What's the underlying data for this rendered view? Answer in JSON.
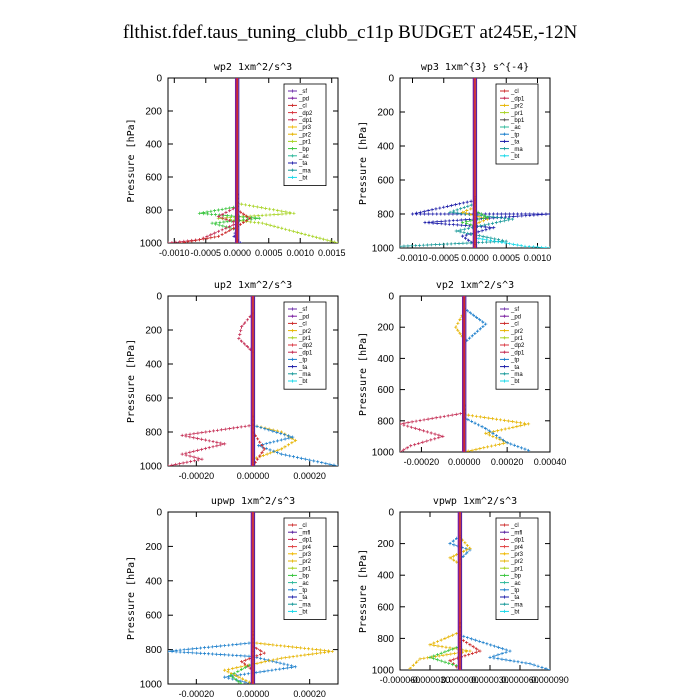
{
  "title": "flthist.fdef.taus_tuning_clubb_c11p  BUDGET at245E,-12N",
  "colors": {
    "legend": {
      "_sf": "#6a2aa8",
      "_pd": "#7a1fa0",
      "_cl": "#cc2a2a",
      "_dp2": "#d8323c",
      "_dp1": "#c42b52",
      "_pr3": "#f0b800",
      "_pr2": "#e6b400",
      "_pr1": "#a7d323",
      "_bp": "#37c43c",
      "_ac": "#2cb89a",
      "_tp": "#1c7fcc",
      "_ta": "#1a1aa8",
      "_ma": "#1a9a9a",
      "_bt": "#16d8e8",
      "_mfl": "#5a22a0",
      "_pr4": "#e04040"
    }
  },
  "chart_data": [
    {
      "type": "line",
      "title": "wp2   1xm^2/s^3",
      "ylabel": "Pressure [hPa]",
      "ylim": [
        1000,
        0
      ],
      "xlim": [
        -0.0011,
        0.0016
      ],
      "xticks": [
        -0.001,
        -0.0005,
        0.0,
        0.0005,
        0.001,
        0.0015
      ],
      "xtick_labels": [
        "-0.0010",
        "-0.0005",
        "0.0000",
        "0.0005",
        "0.0010",
        "0.0015"
      ],
      "yticks": [
        0,
        200,
        400,
        600,
        800,
        1000
      ],
      "legend": [
        "_sf",
        "_pd",
        "_cl",
        "_dp2",
        "_dp1",
        "_pr3",
        "_pr2",
        "_pr1",
        "_bp",
        "_ac",
        "_ta",
        "_ma",
        "_bt"
      ],
      "legend_placement": "top-right",
      "series": [
        {
          "name": "_pr1",
          "points": [
            [
              0.0,
              760
            ],
            [
              0.0009,
              820
            ],
            [
              -0.0003,
              850
            ],
            [
              0.0004,
              880
            ],
            [
              0.0012,
              960
            ],
            [
              0.0016,
              1000
            ]
          ]
        },
        {
          "name": "_bp",
          "points": [
            [
              0.0,
              780
            ],
            [
              -0.0006,
              820
            ],
            [
              0.00035,
              850
            ],
            [
              -0.0004,
              880
            ],
            [
              0.0,
              920
            ]
          ]
        },
        {
          "name": "_dp1",
          "points": [
            [
              0.0,
              780
            ],
            [
              -0.0003,
              840
            ],
            [
              0.0,
              880
            ],
            [
              -0.0006,
              980
            ],
            [
              -0.0011,
              1000
            ]
          ]
        },
        {
          "name": "_cl",
          "points": [
            [
              0.0,
              800
            ],
            [
              0.0002,
              850
            ],
            [
              0.0,
              900
            ],
            [
              -0.0003,
              960
            ],
            [
              -0.0009,
              1000
            ]
          ]
        },
        {
          "name": "_ta",
          "points": [
            [
              0.0,
              900
            ],
            [
              -5e-05,
              960
            ],
            [
              5e-05,
              1000
            ]
          ]
        }
      ]
    },
    {
      "type": "line",
      "title": "wp3   1xm^{3} s^{-4}",
      "ylabel": "Pressure [hPa]",
      "ylim": [
        1000,
        0
      ],
      "xlim": [
        -0.0012,
        0.0012
      ],
      "xticks": [
        -0.001,
        -0.0005,
        0.0,
        0.0005,
        0.001
      ],
      "xtick_labels": [
        "-0.0010",
        "-0.0005",
        "0.0000",
        "0.0005",
        "0.0010"
      ],
      "yticks": [
        0,
        200,
        400,
        600,
        800,
        1000
      ],
      "legend": [
        "_cl",
        "_dp1",
        "_pr2",
        "_pr1",
        "_bp1",
        "_ac",
        "_tp",
        "_ta",
        "_ma",
        "_bt"
      ],
      "legend_placement": "top-right",
      "series": [
        {
          "name": "_ta",
          "points": [
            [
              0.0,
              720
            ],
            [
              -0.001,
              800
            ],
            [
              0.0012,
              800
            ],
            [
              -0.0008,
              850
            ],
            [
              0.0003,
              880
            ],
            [
              -0.0002,
              930
            ],
            [
              0.0,
              980
            ]
          ]
        },
        {
          "name": "_ma",
          "points": [
            [
              0.0,
              740
            ],
            [
              -0.0004,
              790
            ],
            [
              0.0006,
              830
            ],
            [
              -0.0003,
              900
            ],
            [
              0.0005,
              960
            ],
            [
              -0.0012,
              990
            ]
          ]
        },
        {
          "name": "_pr2",
          "points": [
            [
              0.0,
              760
            ],
            [
              -0.0002,
              790
            ],
            [
              0.0002,
              830
            ],
            [
              0.0,
              860
            ]
          ]
        },
        {
          "name": "_bp",
          "points": [
            [
              0.0,
              780
            ],
            [
              0.0002,
              820
            ],
            [
              -0.0002,
              850
            ],
            [
              0.0,
              870
            ]
          ]
        },
        {
          "name": "_bt",
          "points": [
            [
              0.0,
              940
            ],
            [
              0.0008,
              990
            ],
            [
              0.0012,
              1000
            ]
          ]
        }
      ]
    },
    {
      "type": "line",
      "title": "up2   1xm^2/s^3",
      "ylabel": "Pressure [hPa]",
      "ylim": [
        1000,
        0
      ],
      "xlim": [
        -0.0003,
        0.0003
      ],
      "xticks": [
        -0.0002,
        0.0,
        0.0002
      ],
      "xtick_labels": [
        "-0.00020",
        "0.00000",
        "0.00020"
      ],
      "yticks": [
        0,
        200,
        400,
        600,
        800,
        1000
      ],
      "legend": [
        "_sf",
        "_pd",
        "_cl",
        "_pr2",
        "_pr1",
        "_dp2",
        "_dp1",
        "_tp",
        "_ta",
        "_ma",
        "_bt"
      ],
      "legend_placement": "top-right",
      "series": [
        {
          "name": "_dp1",
          "points": [
            [
              0.0,
              100
            ],
            [
              -4e-05,
              180
            ],
            [
              -5e-05,
              250
            ],
            [
              0.0,
              330
            ]
          ]
        },
        {
          "name": "_dp1",
          "points": [
            [
              0.0,
              760
            ],
            [
              -0.00025,
              820
            ],
            [
              -0.0001,
              870
            ],
            [
              -0.00025,
              930
            ],
            [
              -0.00018,
              960
            ],
            [
              -0.0003,
              1000
            ]
          ]
        },
        {
          "name": "_pr2",
          "points": [
            [
              0.0,
              760
            ],
            [
              0.0001,
              800
            ],
            [
              0.00015,
              850
            ],
            [
              0.0001,
              900
            ],
            [
              0.0,
              960
            ]
          ]
        },
        {
          "name": "_tp",
          "points": [
            [
              0.0,
              760
            ],
            [
              0.00014,
              830
            ],
            [
              2e-05,
              880
            ],
            [
              0.0001,
              930
            ],
            [
              0.0003,
              1000
            ]
          ]
        },
        {
          "name": "_cl",
          "points": [
            [
              0.0,
              800
            ],
            [
              4e-05,
              900
            ],
            [
              0.0,
              1000
            ]
          ]
        }
      ]
    },
    {
      "type": "line",
      "title": "vp2   1xm^2/s^3",
      "ylabel": "Pressure [hPa]",
      "ylim": [
        1000,
        0
      ],
      "xlim": [
        -0.0003,
        0.0004
      ],
      "xticks": [
        -0.0002,
        0.0,
        0.0002,
        0.0004
      ],
      "xtick_labels": [
        "-0.00020",
        "0.00000",
        "0.00020",
        "0.00040"
      ],
      "yticks": [
        0,
        200,
        400,
        600,
        800,
        1000
      ],
      "legend": [
        "_sf",
        "_pd",
        "_cl",
        "_pr2",
        "_pr1",
        "_dp2",
        "_dp1",
        "_tp",
        "_ta",
        "_ma",
        "_bt"
      ],
      "legend_placement": "top-right",
      "series": [
        {
          "name": "_tp",
          "points": [
            [
              0.0,
              80
            ],
            [
              0.0001,
              180
            ],
            [
              5e-05,
              240
            ],
            [
              0.0,
              300
            ]
          ]
        },
        {
          "name": "_pr2",
          "points": [
            [
              0.0,
              100
            ],
            [
              -4e-05,
              200
            ],
            [
              0.0,
              280
            ]
          ]
        },
        {
          "name": "_dp1",
          "points": [
            [
              0.0,
              750
            ],
            [
              -0.0003,
              820
            ],
            [
              -0.0001,
              900
            ],
            [
              -0.00025,
              960
            ],
            [
              -0.0003,
              1000
            ]
          ]
        },
        {
          "name": "_pr2",
          "points": [
            [
              0.0,
              760
            ],
            [
              0.0003,
              820
            ],
            [
              0.0001,
              880
            ],
            [
              0.0002,
              940
            ],
            [
              0.0,
              1000
            ]
          ]
        },
        {
          "name": "_tp",
          "points": [
            [
              0.0,
              780
            ],
            [
              0.0001,
              850
            ],
            [
              0.0002,
              940
            ],
            [
              0.0003,
              990
            ]
          ]
        }
      ]
    },
    {
      "type": "line",
      "title": "upwp   1xm^2/s^3",
      "ylabel": "Pressure [hPa]",
      "ylim": [
        1000,
        0
      ],
      "xlim": [
        -0.0003,
        0.0003
      ],
      "xticks": [
        -0.0002,
        0.0,
        0.0002
      ],
      "xtick_labels": [
        "-0.00020",
        "0.00000",
        "0.00020"
      ],
      "yticks": [
        0,
        200,
        400,
        600,
        800,
        1000
      ],
      "legend": [
        "_cl",
        "_mfl",
        "_dp1",
        "_pr4",
        "_pr3",
        "_pr2",
        "_pr1",
        "_bp",
        "_ac",
        "_tp",
        "_ta",
        "_ma",
        "_bt"
      ],
      "legend_placement": "top-right",
      "series": [
        {
          "name": "_tp",
          "points": [
            [
              0.0,
              760
            ],
            [
              -0.0003,
              810
            ],
            [
              0.0,
              840
            ],
            [
              0.00015,
              900
            ],
            [
              -0.0001,
              960
            ],
            [
              0.0,
              1000
            ]
          ]
        },
        {
          "name": "_pr2",
          "points": [
            [
              0.0,
              760
            ],
            [
              0.00028,
              810
            ],
            [
              0.0001,
              850
            ],
            [
              -0.0001,
              920
            ],
            [
              0.0,
              1000
            ]
          ]
        },
        {
          "name": "_cl",
          "points": [
            [
              0.0,
              780
            ],
            [
              4e-05,
              820
            ],
            [
              -4e-05,
              870
            ],
            [
              0.0,
              920
            ]
          ]
        },
        {
          "name": "_bp",
          "points": [
            [
              0.0,
              880
            ],
            [
              -8e-05,
              950
            ],
            [
              -4e-05,
              1000
            ]
          ]
        }
      ]
    },
    {
      "type": "line",
      "title": "vpwp   1xm^2/s^3",
      "ylabel": "Pressure [hPa]",
      "ylim": [
        1000,
        0
      ],
      "xlim": [
        -6e-05,
        9e-05
      ],
      "xticks": [
        -6e-05,
        -3e-05,
        0.0,
        3e-05,
        6e-05,
        9e-05
      ],
      "xtick_labels": [
        "-0.000060",
        "-0.000030",
        "0.000000",
        "0.000030",
        "0.000060",
        "0.000090"
      ],
      "yticks": [
        0,
        200,
        400,
        600,
        800,
        1000
      ],
      "legend": [
        "_cl",
        "_mfl",
        "_dp1",
        "_pr4",
        "_pr3",
        "_pr2",
        "_pr1",
        "_bp",
        "_ac",
        "_tp",
        "_ta",
        "_ma",
        "_bt"
      ],
      "legend_placement": "top-right",
      "series": [
        {
          "name": "_tp",
          "points": [
            [
              0.0,
              150
            ],
            [
              -1e-05,
              200
            ],
            [
              1e-05,
              240
            ],
            [
              0.0,
              300
            ]
          ]
        },
        {
          "name": "_pr2",
          "points": [
            [
              0.0,
              160
            ],
            [
              1e-05,
              230
            ],
            [
              -1e-05,
              290
            ],
            [
              0.0,
              330
            ]
          ]
        },
        {
          "name": "_pr2",
          "points": [
            [
              0.0,
              760
            ],
            [
              -3e-05,
              840
            ],
            [
              1e-05,
              880
            ],
            [
              -4e-05,
              930
            ],
            [
              -5e-05,
              990
            ]
          ]
        },
        {
          "name": "_tp",
          "points": [
            [
              0.0,
              780
            ],
            [
              5e-05,
              880
            ],
            [
              3e-05,
              920
            ],
            [
              7e-05,
              960
            ],
            [
              9e-05,
              1000
            ]
          ]
        },
        {
          "name": "_cl",
          "points": [
            [
              0.0,
              800
            ],
            [
              2e-05,
              880
            ],
            [
              -1e-05,
              940
            ],
            [
              0.0,
              1000
            ]
          ]
        },
        {
          "name": "_bp",
          "points": [
            [
              0.0,
              850
            ],
            [
              -3e-05,
              920
            ],
            [
              0.0,
              980
            ]
          ]
        }
      ]
    }
  ]
}
